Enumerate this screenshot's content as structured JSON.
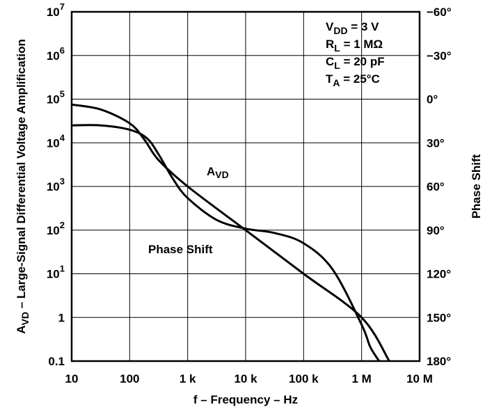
{
  "chart_data": {
    "type": "line",
    "x_scale": "log",
    "y_scale": "log",
    "xlabel": "f – Frequency – Hz",
    "ylabel": {
      "prefix": "A",
      "sub": "VD",
      "suffix": " – Large-Signal Differential Voltage Amplification"
    },
    "y2label": "Phase Shift",
    "xlim": [
      10,
      10000000
    ],
    "ylim": [
      0.1,
      10000000
    ],
    "y2lim": [
      -60,
      180
    ],
    "grid": true,
    "x_ticks": [
      {
        "value": 10,
        "label": "10"
      },
      {
        "value": 100,
        "label": "100"
      },
      {
        "value": 1000,
        "label": "1 k"
      },
      {
        "value": 10000,
        "label": "10 k"
      },
      {
        "value": 100000,
        "label": "100 k"
      },
      {
        "value": 1000000,
        "label": "1 M"
      },
      {
        "value": 10000000,
        "label": "10 M"
      }
    ],
    "y_ticks": [
      {
        "value": 10000000,
        "base": "10",
        "exp": "7"
      },
      {
        "value": 1000000,
        "base": "10",
        "exp": "6"
      },
      {
        "value": 100000,
        "base": "10",
        "exp": "5"
      },
      {
        "value": 10000,
        "base": "10",
        "exp": "4"
      },
      {
        "value": 1000,
        "base": "10",
        "exp": "3"
      },
      {
        "value": 100,
        "base": "10",
        "exp": "2"
      },
      {
        "value": 10,
        "base": "10",
        "exp": "1"
      },
      {
        "value": 1,
        "base": "1",
        "exp": ""
      },
      {
        "value": 0.1,
        "base": "0.1",
        "exp": ""
      }
    ],
    "y2_ticks": [
      {
        "value": -60,
        "label": "−60°"
      },
      {
        "value": -30,
        "label": "−30°"
      },
      {
        "value": 0,
        "label": "0°"
      },
      {
        "value": 30,
        "label": "30°"
      },
      {
        "value": 60,
        "label": "60°"
      },
      {
        "value": 90,
        "label": "90°"
      },
      {
        "value": 120,
        "label": "120°"
      },
      {
        "value": 150,
        "label": "150°"
      },
      {
        "value": 180,
        "label": "180°"
      }
    ],
    "series": [
      {
        "name": "AVD",
        "label_main": "A",
        "label_sub": "VD",
        "axis": "left",
        "x": [
          10,
          31.6,
          100,
          178,
          316,
          1000,
          10000,
          100000,
          1000000,
          3000000
        ],
        "y": [
          75000,
          58000,
          28000,
          12000,
          4000,
          1000,
          100,
          10,
          1,
          0.1
        ]
      },
      {
        "name": "Phase Shift",
        "axis": "right",
        "x": [
          10,
          31.6,
          100,
          200,
          316,
          562,
          1000,
          3160,
          10000,
          31600,
          100000,
          316000,
          1000000,
          1400000,
          2000000
        ],
        "y": [
          18,
          18,
          21,
          27,
          38,
          55,
          68,
          83,
          89,
          92,
          99,
          117,
          155,
          170,
          180
        ]
      }
    ],
    "annotations": {
      "conditions": [
        {
          "main": "V",
          "sub": "DD",
          "rest": " = 3 V"
        },
        {
          "main": "R",
          "sub": "L",
          "rest": " = 1 MΩ"
        },
        {
          "main": "C",
          "sub": "L",
          "rest": " = 20 pF"
        },
        {
          "main": "T",
          "sub": "A",
          "rest": " = 25°C"
        }
      ]
    }
  }
}
